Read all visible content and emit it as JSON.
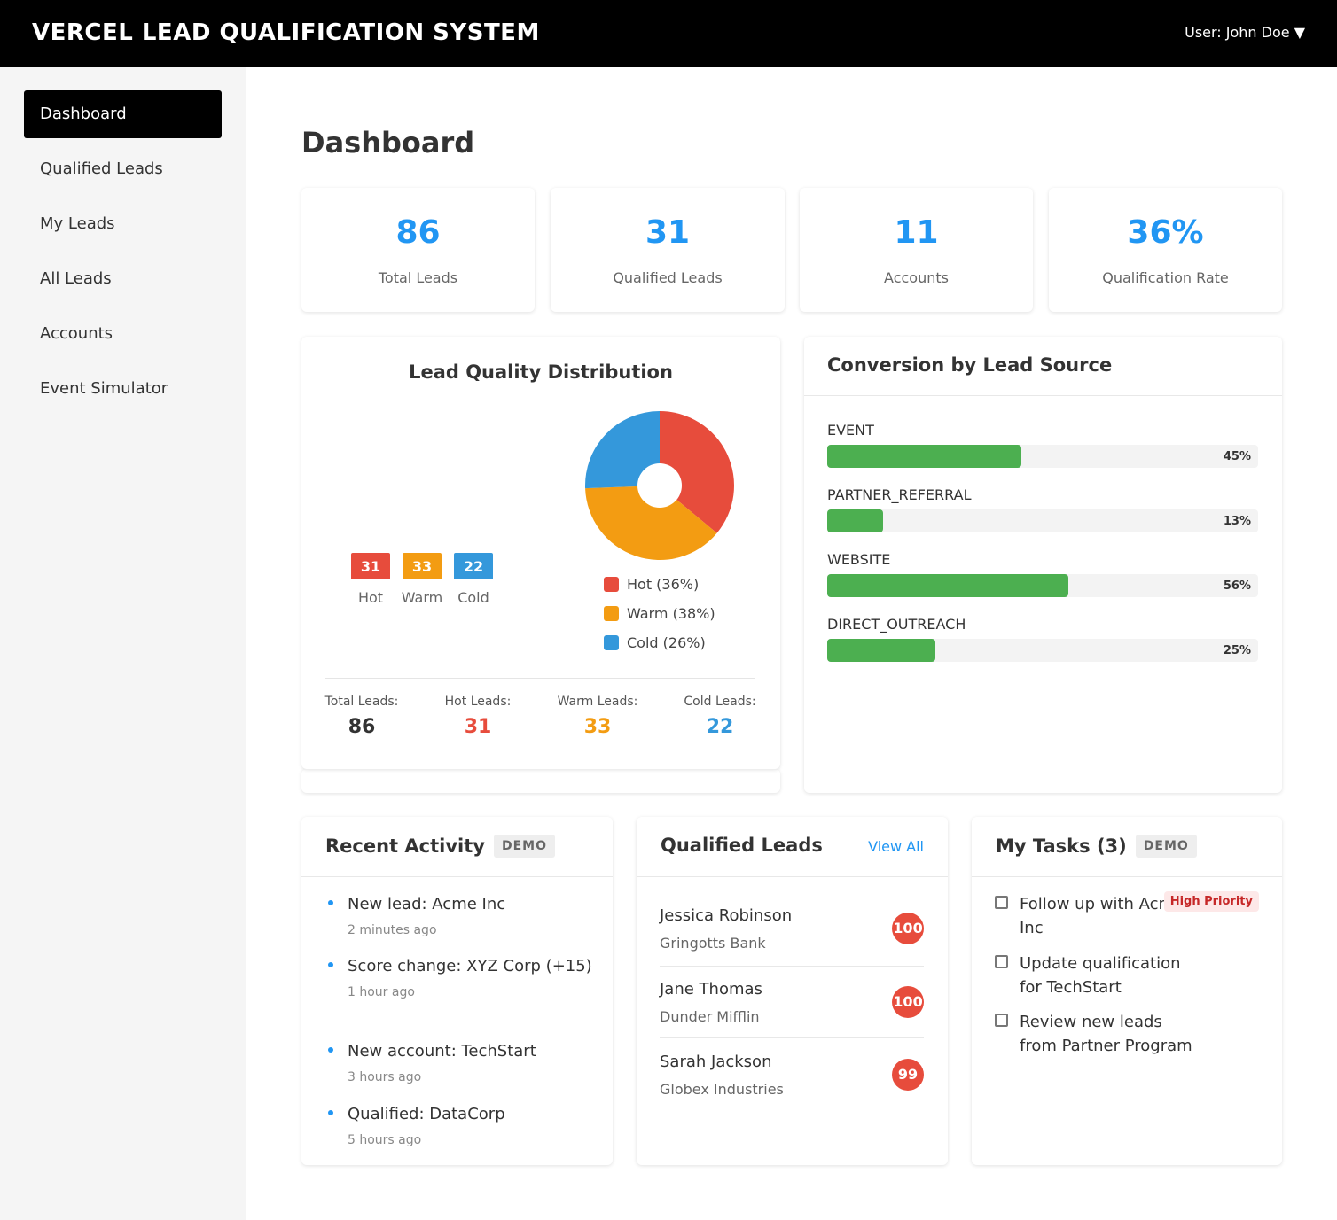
{
  "header": {
    "title": "VERCEL LEAD QUALIFICATION SYSTEM",
    "user": "User: John Doe ▼"
  },
  "sidebar": {
    "items": [
      {
        "label": "Dashboard",
        "active": true
      },
      {
        "label": "Qualified Leads"
      },
      {
        "label": "My Leads"
      },
      {
        "label": "All Leads"
      },
      {
        "label": "Accounts"
      },
      {
        "label": "Event Simulator"
      }
    ]
  },
  "page_title": "Dashboard",
  "stats": [
    {
      "value": "86",
      "label": "Total Leads"
    },
    {
      "value": "31",
      "label": "Qualified Leads"
    },
    {
      "value": "11",
      "label": "Accounts"
    },
    {
      "value": "36%",
      "label": "Qualification Rate"
    }
  ],
  "colors": {
    "hot": "#e74c3c",
    "warm": "#f39c12",
    "cold": "#3498db",
    "accent": "#2196f3",
    "bar": "#4caf50"
  },
  "quality": {
    "title": "Lead Quality Distribution",
    "bars": [
      {
        "value": "31",
        "label": "Hot"
      },
      {
        "value": "33",
        "label": "Warm"
      },
      {
        "value": "22",
        "label": "Cold"
      }
    ],
    "legend": [
      "Hot (36%)",
      "Warm (38%)",
      "Cold (26%)"
    ],
    "summary": [
      {
        "label": "Total Leads:",
        "value": "86"
      },
      {
        "label": "Hot Leads:",
        "value": "31"
      },
      {
        "label": "Warm Leads:",
        "value": "33"
      },
      {
        "label": "Cold Leads:",
        "value": "22"
      }
    ]
  },
  "chart_data": {
    "type": "pie",
    "categories": [
      "Hot",
      "Warm",
      "Cold"
    ],
    "values": [
      31,
      33,
      22
    ],
    "colors": [
      "#e74c3c",
      "#f39c12",
      "#3498db"
    ],
    "donut": true
  },
  "conversion": {
    "title": "Conversion by Lead Source",
    "sources": [
      {
        "name": "EVENT",
        "pct": 45,
        "pct_label": "45%"
      },
      {
        "name": "PARTNER_REFERRAL",
        "pct": 13,
        "pct_label": "13%"
      },
      {
        "name": "WEBSITE",
        "pct": 56,
        "pct_label": "56%"
      },
      {
        "name": "DIRECT_OUTREACH",
        "pct": 25,
        "pct_label": "25%"
      }
    ]
  },
  "activity": {
    "title": "Recent Activity",
    "badge": "DEMO",
    "items": [
      {
        "text": "New lead: Acme Inc",
        "time": "2 minutes ago"
      },
      {
        "text": "Score change: XYZ Corp (+15)",
        "time": "1 hour ago"
      },
      {
        "text": "New account: TechStart",
        "time": "3 hours ago"
      },
      {
        "text": "Qualified: DataCorp",
        "time": "5 hours ago"
      }
    ]
  },
  "qualified": {
    "title": "Qualified Leads",
    "view_all": "View All",
    "leads": [
      {
        "name": "Jessica Robinson",
        "company": "Gringotts Bank",
        "score": "100"
      },
      {
        "name": "Jane Thomas",
        "company": "Dunder Mifflin",
        "score": "100"
      },
      {
        "name": "Sarah Jackson",
        "company": "Globex Industries",
        "score": "99"
      }
    ]
  },
  "tasks": {
    "title": "My Tasks (3)",
    "badge": "DEMO",
    "items": [
      {
        "text": "Follow up with Acme Inc"
      },
      {
        "text": "Update qualification for TechStart"
      },
      {
        "text": "Review new leads from Partner Program"
      }
    ],
    "priority": "High Priority"
  }
}
